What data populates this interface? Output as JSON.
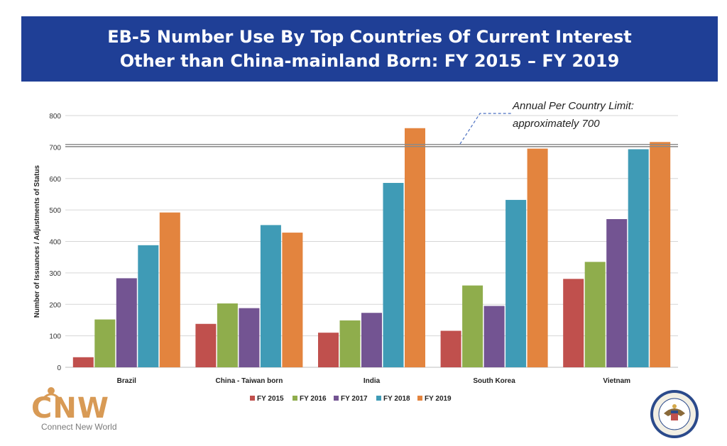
{
  "header": {
    "title_line1": "EB-5 Number Use By Top Countries Of Current Interest",
    "title_line2": "Other than China-mainland Born: FY 2015 – FY 2019",
    "background": "#1f3f96"
  },
  "chart_data": {
    "type": "bar",
    "categories": [
      "Brazil",
      "China - Taiwan born",
      "India",
      "South Korea",
      "Vietnam"
    ],
    "series": [
      {
        "name": "FY 2015",
        "color": "#c0504d",
        "values": [
          32,
          138,
          110,
          116,
          281
        ]
      },
      {
        "name": "FY 2016",
        "color": "#8fad4c",
        "values": [
          152,
          203,
          149,
          260,
          335
        ]
      },
      {
        "name": "FY 2017",
        "color": "#735492",
        "values": [
          283,
          188,
          173,
          195,
          471
        ]
      },
      {
        "name": "FY 2018",
        "color": "#3f9bb6",
        "values": [
          388,
          452,
          586,
          532,
          693
        ]
      },
      {
        "name": "FY 2019",
        "color": "#e3843e",
        "values": [
          492,
          428,
          760,
          695,
          716
        ]
      }
    ],
    "ylabel": "Number of Issuances / Adjustments of Status",
    "ylim": [
      0,
      800
    ],
    "yticks": [
      0,
      100,
      200,
      300,
      400,
      500,
      600,
      700,
      800
    ],
    "grid": true,
    "legend": "bottom",
    "reference_line": {
      "value": 705,
      "annotation_line1": "Annual Per Country Limit:",
      "annotation_line2": "approximately 700"
    }
  },
  "logos": {
    "left_letters": "CNW",
    "left_tagline": "Connect New World",
    "accent": "#d89a55"
  }
}
